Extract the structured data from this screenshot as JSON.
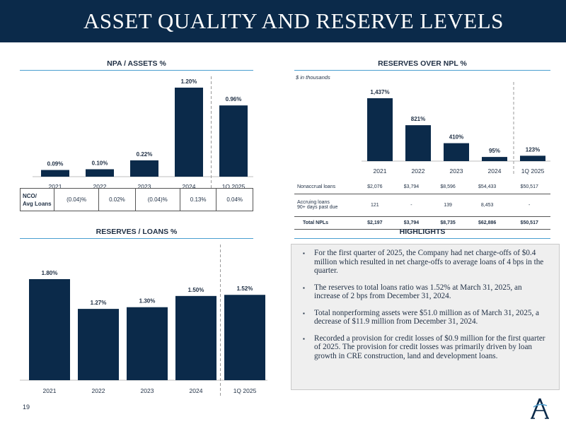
{
  "header": {
    "title": "ASSET QUALITY AND RESERVE LEVELS"
  },
  "npa_assets": {
    "title": "NPA / ASSETS %"
  },
  "reserves_npl": {
    "title": "RESERVES OVER NPL %",
    "note": "$ in thousands"
  },
  "reserves_loans": {
    "title": "RESERVES / LOANS %"
  },
  "nco_table": {
    "label_line1": "NCO/",
    "label_line2": "Avg Loans",
    "values": [
      "(0.04)%",
      "0.02%",
      "(0.04)%",
      "0.13%",
      "0.04%"
    ]
  },
  "npl_table": {
    "rows": [
      {
        "label_line1": "Nonaccrual loans",
        "label_line2": "",
        "values": [
          "$2,076",
          "$3,794",
          "$8,596",
          "$54,433",
          "$50,517"
        ]
      },
      {
        "label_line1": "Accruing loans",
        "label_line2": "90+ days past due",
        "values": [
          "121",
          "-",
          "139",
          "8,453",
          "-"
        ]
      },
      {
        "label_line1": "Total NPLs",
        "label_line2": "",
        "values": [
          "$2,197",
          "$3,794",
          "$8,735",
          "$62,886",
          "$50,517"
        ]
      }
    ]
  },
  "highlights": {
    "title": "HIGHLIGHTS",
    "items": [
      "For the first quarter of 2025, the Company had net charge-offs of $0.4 million which resulted in net charge-offs to average loans of 4 bps in the quarter.",
      "The reserves to total loans ratio was 1.52% at March 31, 2025, an increase of 2 bps from December 31, 2024.",
      "Total nonperforming assets were $51.0 million as of March 31, 2025, a decrease of $11.9 million from December 31, 2024.",
      "Recorded a provision for credit losses of $0.9 million for the first quarter of 2025. The provision for credit losses was primarily driven by loan growth in CRE construction, land and development loans."
    ]
  },
  "footer": {
    "page_number": "19",
    "logo_letter": "A"
  },
  "colors": {
    "navy": "#0b2a4a",
    "accent_rule": "#4a9fd0",
    "panel_bg": "#efefef"
  },
  "chart_data": [
    {
      "id": "npa",
      "type": "bar",
      "title": "NPA / ASSETS %",
      "categories": [
        "2021",
        "2022",
        "2023",
        "2024",
        "1Q 2025"
      ],
      "values": [
        0.09,
        0.1,
        0.22,
        1.2,
        0.96
      ],
      "labels": [
        "0.09%",
        "0.10%",
        "0.22%",
        "1.20%",
        "0.96%"
      ],
      "ylim": [
        0,
        1.2
      ],
      "divider_after_index": 3
    },
    {
      "id": "npl",
      "type": "bar",
      "title": "RESERVES OVER NPL %",
      "categories": [
        "2021",
        "2022",
        "2023",
        "2024",
        "1Q 2025"
      ],
      "values": [
        1437,
        821,
        410,
        95,
        123
      ],
      "labels": [
        "1,437%",
        "821%",
        "410%",
        "95%",
        "123%"
      ],
      "ylim": [
        0,
        1437
      ],
      "divider_after_index": 3
    },
    {
      "id": "loans",
      "type": "bar",
      "title": "RESERVES / LOANS %",
      "categories": [
        "2021",
        "2022",
        "2023",
        "2024",
        "1Q 2025"
      ],
      "values": [
        1.8,
        1.27,
        1.3,
        1.5,
        1.52
      ],
      "labels": [
        "1.80%",
        "1.27%",
        "1.30%",
        "1.50%",
        "1.52%"
      ],
      "ylim": [
        0,
        1.8
      ],
      "divider_after_index": 3
    }
  ]
}
